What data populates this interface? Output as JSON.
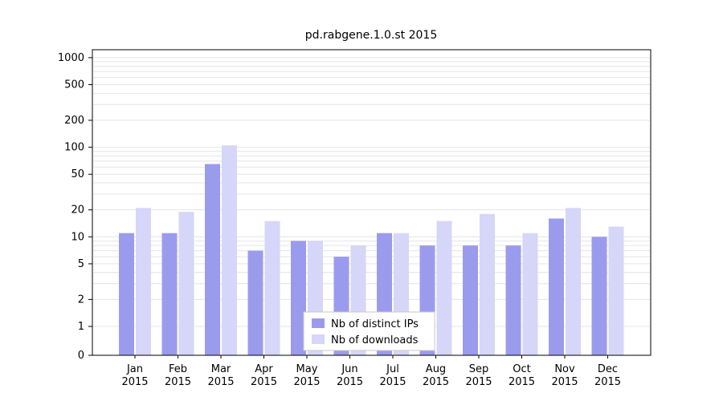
{
  "chart_data": {
    "type": "bar",
    "title": "pd.rabgene.1.0.st 2015",
    "scale": "log",
    "grid": "horizontal",
    "legend_position": "bottom-center-inside",
    "categories": [
      "Jan",
      "Feb",
      "Mar",
      "Apr",
      "May",
      "Jun",
      "Jul",
      "Aug",
      "Sep",
      "Oct",
      "Nov",
      "Dec"
    ],
    "year": "2015",
    "yticks": [
      0,
      1,
      2,
      5,
      10,
      20,
      50,
      100,
      200,
      500,
      1000
    ],
    "ylim": [
      0,
      1000
    ],
    "series": [
      {
        "name": "Nb of distinct IPs",
        "key": "distinct-ips",
        "color": "#9b9bee",
        "values": [
          11,
          11,
          65,
          7,
          9,
          6,
          11,
          8,
          8,
          8,
          16,
          10
        ]
      },
      {
        "name": "Nb of downloads",
        "key": "downloads",
        "color": "#d6d6f8",
        "values": [
          21,
          19,
          105,
          15,
          9,
          8,
          11,
          15,
          18,
          11,
          21,
          13
        ]
      }
    ],
    "colors": {
      "axis": "#000000",
      "gridline": "#e4e4e4",
      "legend_border": "#c8c8c8",
      "text": "#000000",
      "background": "#ffffff"
    }
  }
}
